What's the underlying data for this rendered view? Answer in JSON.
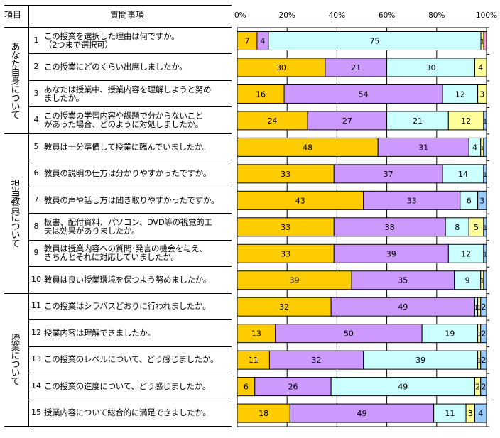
{
  "table": {
    "col_category": "項目",
    "col_question": "質問事項"
  },
  "groups": [
    {
      "label": "あなた自身について",
      "rows": 4
    },
    {
      "label": "担当教員について",
      "rows": 6
    },
    {
      "label": "授業について",
      "rows": 5
    }
  ],
  "questions": [
    {
      "no": "1",
      "text": "この授業を選択した理由は何ですか。\n（2つまで選択可）"
    },
    {
      "no": "2",
      "text": " この授業にどのくらい出席しましたか。"
    },
    {
      "no": "3",
      "text": "あなたは授業中、授業内容を理解しようと努め\nましたか。"
    },
    {
      "no": "4",
      "text": "この授業の学習内容や課題で分からないこと\nがあった場合、どのように対処しましたか。"
    },
    {
      "no": "5",
      "text": "教員は十分準備して授業に臨んでいましたか。"
    },
    {
      "no": "6",
      "text": "教員の説明の仕方は分かりやすかったですか。"
    },
    {
      "no": "7",
      "text": "教員の声や話し方は聞き取りやすかったですか。"
    },
    {
      "no": "8",
      "text": "板書、配付資料、パソコン、DVD等の視覚的工\n夫は効果がありましたか。"
    },
    {
      "no": "9",
      "text": "教員は授業内容への質問･発言の機会を与え、\nきちんとそれに対応していましたか。"
    },
    {
      "no": "10",
      "text": "教員は良い授業環境を保つよう努めましたか。"
    },
    {
      "no": "11",
      "text": "この授業はシラバスどおりに行われましたか。"
    },
    {
      "no": "12",
      "text": "授業内容は理解できましたか。"
    },
    {
      "no": "13",
      "text": "この授業のレベルについて、どう感じましたか。"
    },
    {
      "no": "14",
      "text": "この授業の進度について、どう感じましたか。"
    },
    {
      "no": "15",
      "text": "授業内容について総合的に満足できましたか。"
    }
  ],
  "chart_data": {
    "type": "bar",
    "orientation": "horizontal-stacked-100",
    "xlim": [
      0,
      100
    ],
    "tick_labels": [
      "0%",
      "20%",
      "40%",
      "60%",
      "80%",
      "100%"
    ],
    "colors": [
      "#FFCC00",
      "#CC99FF",
      "#CCFFFF",
      "#FFFF99",
      "#99CCFF",
      "#FF99CC"
    ],
    "categories": [
      "1",
      "2",
      "3",
      "4",
      "5",
      "6",
      "7",
      "8",
      "9",
      "10",
      "11",
      "12",
      "13",
      "14",
      "15"
    ],
    "values": [
      [
        7,
        4,
        75,
        1,
        0,
        1
      ],
      [
        30,
        21,
        30,
        4,
        0,
        0
      ],
      [
        16,
        54,
        12,
        3,
        0,
        0
      ],
      [
        24,
        27,
        21,
        12,
        1,
        0
      ],
      [
        48,
        31,
        4,
        1,
        1,
        0
      ],
      [
        33,
        37,
        14,
        0,
        1,
        0
      ],
      [
        43,
        33,
        6,
        0,
        3,
        0
      ],
      [
        33,
        38,
        8,
        5,
        1,
        0
      ],
      [
        33,
        39,
        12,
        0,
        1,
        0
      ],
      [
        39,
        35,
        9,
        1,
        1,
        0
      ],
      [
        32,
        49,
        1,
        1,
        2,
        0
      ],
      [
        13,
        50,
        19,
        1,
        2,
        0
      ],
      [
        11,
        32,
        39,
        1,
        2,
        0
      ],
      [
        6,
        26,
        49,
        2,
        2,
        0
      ],
      [
        18,
        49,
        11,
        3,
        4,
        0
      ]
    ],
    "labels": [
      [
        "7",
        "4",
        "75",
        "1",
        "",
        ""
      ],
      [
        "30",
        "21",
        "30",
        "4",
        "",
        ""
      ],
      [
        "16",
        "54",
        "12",
        "3",
        "",
        ""
      ],
      [
        "24",
        "27",
        "21",
        "12",
        "1",
        ""
      ],
      [
        "48",
        "31",
        "4",
        "1",
        "",
        ""
      ],
      [
        "33",
        "37",
        "14",
        "",
        "1",
        ""
      ],
      [
        "43",
        "33",
        "6",
        "",
        "3",
        ""
      ],
      [
        "33",
        "38",
        "8",
        "5",
        "1",
        ""
      ],
      [
        "33",
        "39",
        "12",
        "",
        "1",
        ""
      ],
      [
        "39",
        "35",
        "9",
        "1",
        "",
        ""
      ],
      [
        "32",
        "49",
        "1",
        "1",
        "2",
        ""
      ],
      [
        "13",
        "50",
        "19",
        "1",
        "2",
        ""
      ],
      [
        "11",
        "32",
        "39",
        "1",
        "2",
        ""
      ],
      [
        "6",
        "26",
        "49",
        "2",
        "2",
        ""
      ],
      [
        "18",
        "49",
        "11",
        "3",
        "4",
        ""
      ]
    ]
  }
}
